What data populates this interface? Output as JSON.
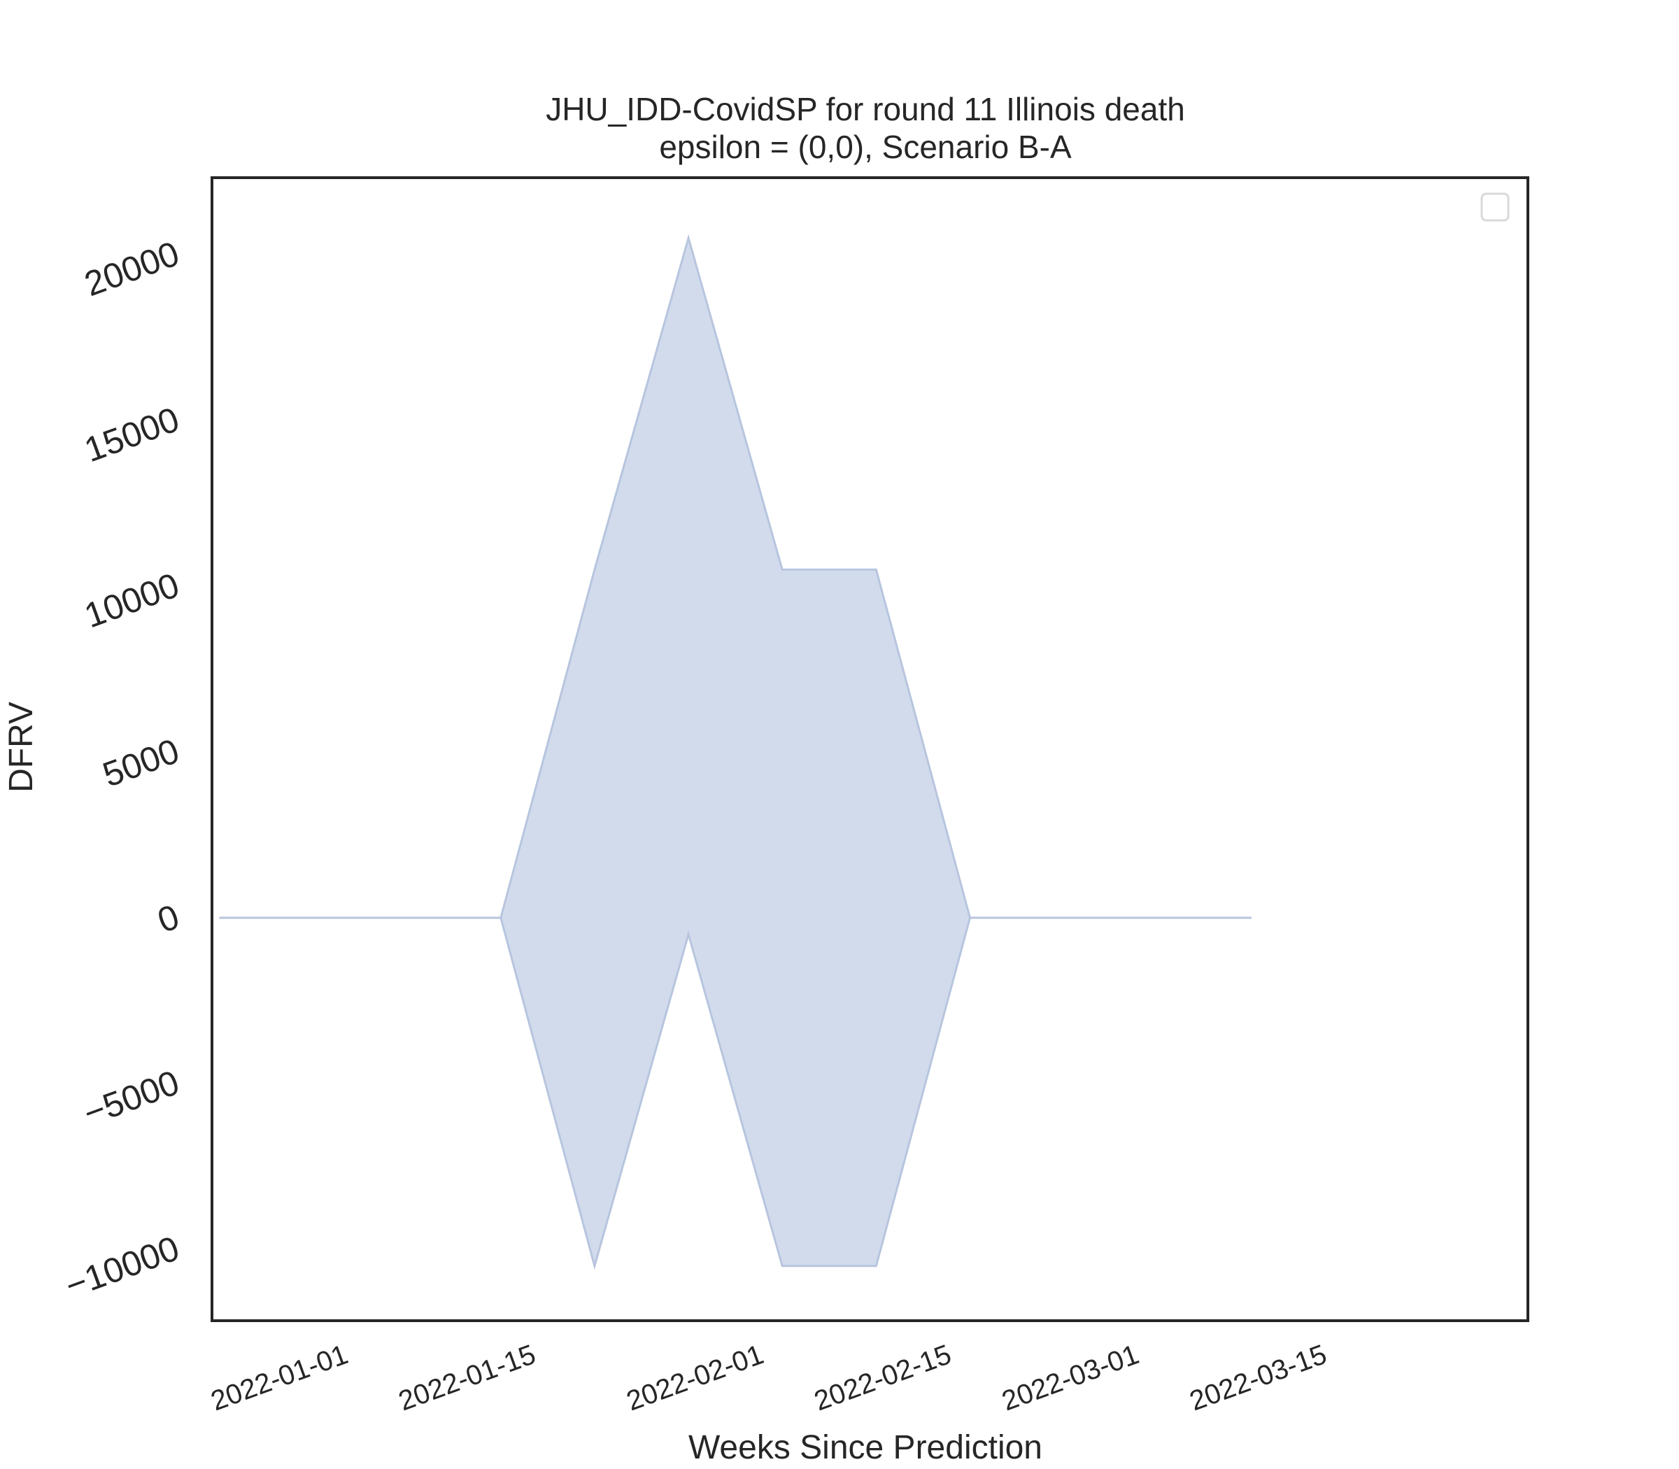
{
  "chart_data": {
    "type": "area",
    "title": "JHU_IDD-CovidSP for round 11 Illinois death",
    "subtitle": "epsilon = (0,0), Scenario B-A",
    "xlabel": "Weeks Since Prediction",
    "ylabel": "DFRV",
    "x_tick_labels": [
      "2022-01-01",
      "2022-01-15",
      "2022-02-01",
      "2022-02-15",
      "2022-03-01",
      "2022-03-15"
    ],
    "x_tick_days": [
      0,
      14,
      31,
      45,
      59,
      73
    ],
    "y_ticks": [
      -10000,
      -5000,
      0,
      5000,
      10000,
      15000,
      20000
    ],
    "y_tick_labels": [
      "−10000",
      "−5000",
      "0",
      "5000",
      "10000",
      "15000",
      "20000"
    ],
    "xlim_days": [
      -4,
      80
    ],
    "ylim": [
      -12000,
      22000
    ],
    "series": [
      {
        "name": "band",
        "x": [
          "2021-12-28",
          "2022-01-04",
          "2022-01-11",
          "2022-01-18",
          "2022-01-25",
          "2022-02-01",
          "2022-02-08",
          "2022-02-15",
          "2022-02-22",
          "2022-03-01",
          "2022-03-08",
          "2022-03-15"
        ],
        "x_days": [
          -4,
          3,
          10,
          17,
          24,
          31,
          38,
          45,
          52,
          59,
          66,
          73
        ],
        "upper": [
          0,
          0,
          0,
          0,
          10500,
          20500,
          10500,
          10500,
          0,
          0,
          0,
          0
        ],
        "lower": [
          0,
          0,
          0,
          0,
          -10500,
          -500,
          -10500,
          -10500,
          0,
          0,
          0,
          0
        ]
      }
    ],
    "legend": {
      "entries": [],
      "placement": "top-right"
    },
    "grid": false,
    "colors": {
      "fill": "#d2dbec",
      "edge": "#b7c5de",
      "axes": "#262626",
      "legend_border": "#d9d9d9"
    }
  }
}
